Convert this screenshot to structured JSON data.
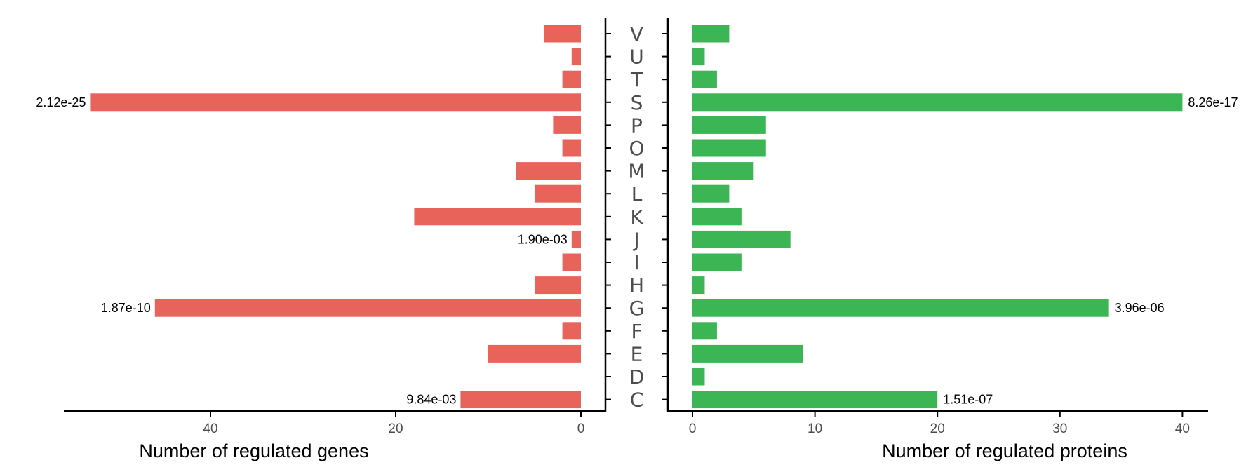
{
  "chart_data": {
    "type": "bar",
    "categories": [
      "V",
      "U",
      "T",
      "S",
      "P",
      "O",
      "M",
      "L",
      "K",
      "J",
      "I",
      "H",
      "G",
      "F",
      "E",
      "D",
      "C"
    ],
    "panels": [
      {
        "side": "left",
        "xlabel": "Number of regulated genes",
        "xticks": [
          40,
          20,
          0
        ],
        "xlim": [
          0,
          54
        ],
        "color": "#E8645A",
        "values": [
          4,
          1,
          2,
          53,
          3,
          2,
          7,
          5,
          18,
          1,
          2,
          5,
          46,
          2,
          10,
          0,
          13
        ],
        "annotations": [
          {
            "category": "S",
            "label": "2.12e-25"
          },
          {
            "category": "J",
            "label": "1.90e-03"
          },
          {
            "category": "G",
            "label": "1.87e-10"
          },
          {
            "category": "C",
            "label": "9.84e-03"
          }
        ]
      },
      {
        "side": "right",
        "xlabel": "Number of regulated proteins",
        "xticks": [
          0,
          10,
          20,
          30,
          40
        ],
        "xlim": [
          0,
          42
        ],
        "color": "#3CB554",
        "values": [
          3,
          1,
          2,
          40,
          6,
          6,
          5,
          3,
          4,
          8,
          4,
          1,
          34,
          2,
          9,
          1,
          20
        ],
        "annotations": [
          {
            "category": "S",
            "label": "8.26e-17"
          },
          {
            "category": "G",
            "label": "3.96e-06"
          },
          {
            "category": "C",
            "label": "1.51e-07"
          }
        ]
      }
    ]
  }
}
